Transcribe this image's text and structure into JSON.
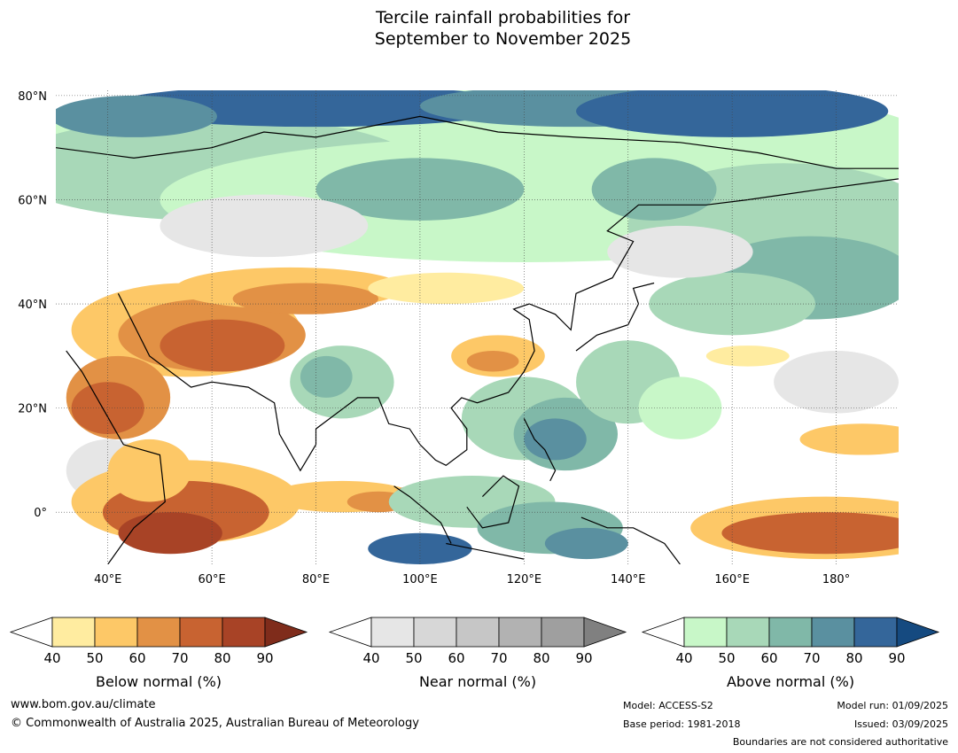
{
  "title": {
    "line1": "Tercile rainfall probabilities for",
    "line2": "September to November 2025"
  },
  "map": {
    "lat_labels": [
      "80°N",
      "60°N",
      "40°N",
      "20°N",
      "0°"
    ],
    "lon_labels": [
      "40°E",
      "60°E",
      "80°E",
      "100°E",
      "120°E",
      "140°E",
      "160°E",
      "180°"
    ],
    "lat_range": [
      -10,
      81
    ],
    "lon_range": [
      30,
      192
    ]
  },
  "colorbars": [
    {
      "id": "below",
      "label": "Below normal (%)",
      "ticks": [
        "40",
        "50",
        "60",
        "70",
        "80",
        "90"
      ],
      "colors": [
        "#ffeca0",
        "#fdc867",
        "#e29145",
        "#c86331",
        "#a84326",
        "#7f2c1b"
      ]
    },
    {
      "id": "near",
      "label": "Near normal (%)",
      "ticks": [
        "40",
        "50",
        "60",
        "70",
        "80",
        "90"
      ],
      "colors": [
        "#e6e6e6",
        "#d7d7d7",
        "#c6c6c6",
        "#b2b2b2",
        "#9f9f9f",
        "#808080"
      ]
    },
    {
      "id": "above",
      "label": "Above normal (%)",
      "ticks": [
        "40",
        "50",
        "60",
        "70",
        "80",
        "90"
      ],
      "colors": [
        "#c8f7c8",
        "#a8d8b8",
        "#80b8a8",
        "#5a90a0",
        "#34669a",
        "#154a80"
      ]
    }
  ],
  "footer": {
    "website": "www.bom.gov.au/climate",
    "copyright": "© Commonwealth of Australia 2025, Australian Bureau of Meteorology",
    "model": "Model: ACCESS-S2",
    "base_period": "Base period: 1981-2018",
    "model_run": "Model run: 01/09/2025",
    "issued": "Issued: 03/09/2025",
    "boundaries_note": "Boundaries are not considered authoritative"
  }
}
